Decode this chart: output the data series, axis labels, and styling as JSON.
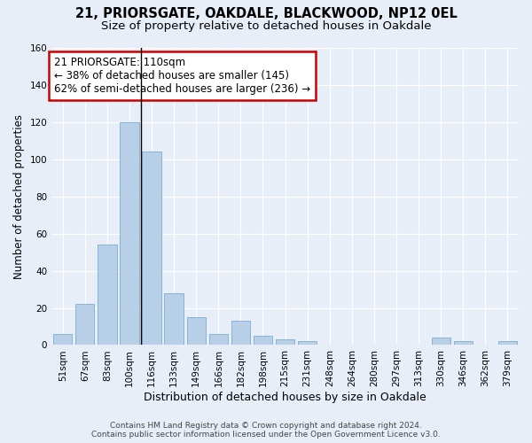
{
  "title1": "21, PRIORSGATE, OAKDALE, BLACKWOOD, NP12 0EL",
  "title2": "Size of property relative to detached houses in Oakdale",
  "xlabel": "Distribution of detached houses by size in Oakdale",
  "ylabel": "Number of detached properties",
  "categories": [
    "51sqm",
    "67sqm",
    "83sqm",
    "100sqm",
    "116sqm",
    "133sqm",
    "149sqm",
    "166sqm",
    "182sqm",
    "198sqm",
    "215sqm",
    "231sqm",
    "248sqm",
    "264sqm",
    "280sqm",
    "297sqm",
    "313sqm",
    "330sqm",
    "346sqm",
    "362sqm",
    "379sqm"
  ],
  "values": [
    6,
    22,
    54,
    120,
    104,
    28,
    15,
    6,
    13,
    5,
    3,
    2,
    0,
    0,
    0,
    0,
    0,
    4,
    2,
    0,
    2
  ],
  "bar_color": "#b8cfe8",
  "bar_edge_color": "#7aadd4",
  "vline_index": 3.5,
  "annotation_title": "21 PRIORSGATE: 110sqm",
  "annotation_line1": "← 38% of detached houses are smaller (145)",
  "annotation_line2": "62% of semi-detached houses are larger (236) →",
  "annotation_box_color": "#ffffff",
  "annotation_box_edge": "#cc0000",
  "ylim": [
    0,
    160
  ],
  "yticks": [
    0,
    20,
    40,
    60,
    80,
    100,
    120,
    140,
    160
  ],
  "footer1": "Contains HM Land Registry data © Crown copyright and database right 2024.",
  "footer2": "Contains public sector information licensed under the Open Government Licence v3.0.",
  "background_color": "#e8eef8",
  "plot_background": "#e8eef8",
  "grid_color": "#ffffff",
  "title1_fontsize": 10.5,
  "title2_fontsize": 9.5,
  "tick_fontsize": 7.5,
  "ylabel_fontsize": 8.5,
  "xlabel_fontsize": 9,
  "annotation_fontsize": 8.5,
  "footer_fontsize": 6.5
}
